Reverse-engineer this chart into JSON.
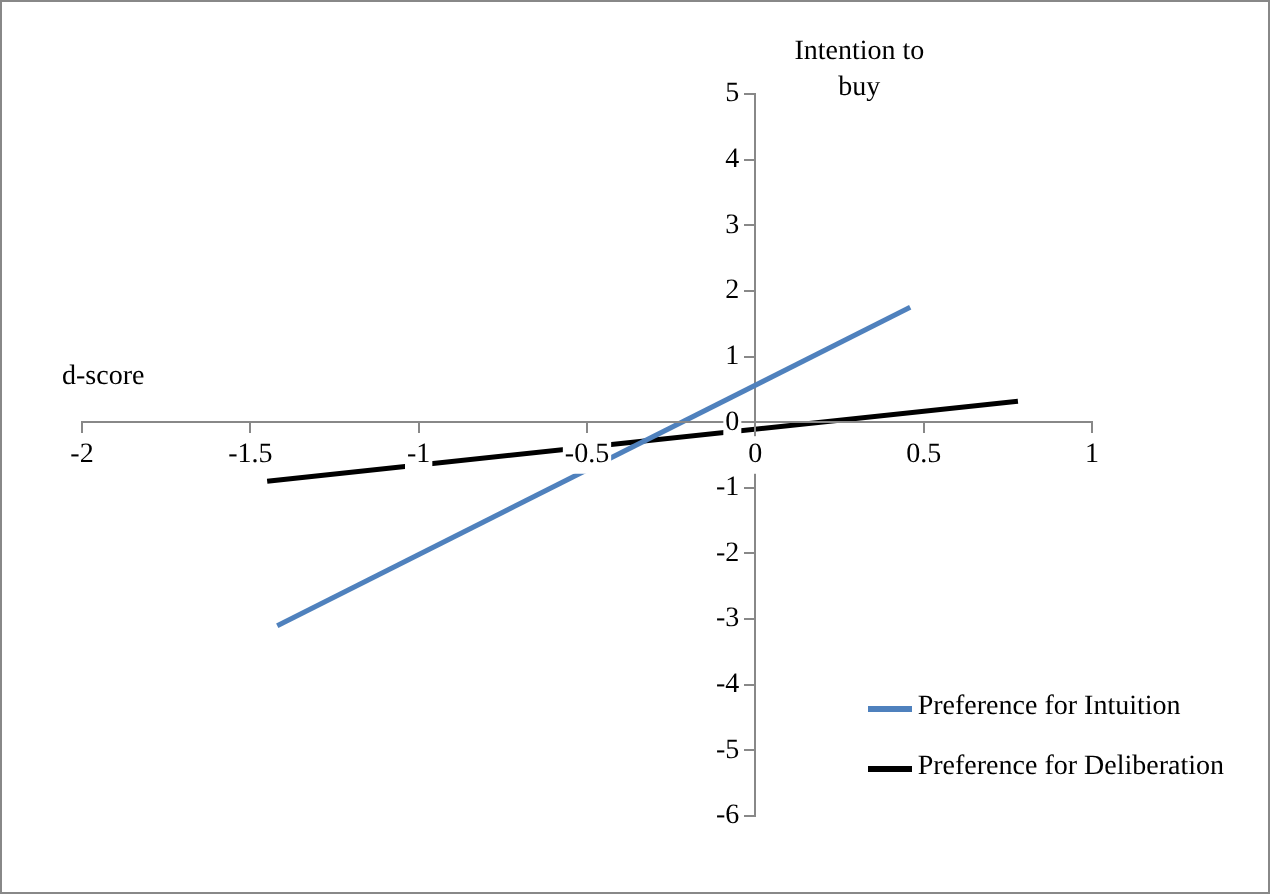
{
  "chart_data": {
    "type": "line",
    "xlabel": "d-score",
    "ylabel": "Intention to buy",
    "series": [
      {
        "name": "Preference for Intuition",
        "color": "#4f81bd",
        "x": [
          -1.42,
          0.46
        ],
        "values": [
          -3.1,
          1.75
        ]
      },
      {
        "name": "Preference for Deliberation",
        "color": "#000000",
        "x": [
          -1.45,
          0.78
        ],
        "values": [
          -0.9,
          0.32
        ]
      }
    ],
    "xlim": [
      -2,
      1
    ],
    "xticks": [
      -2,
      -1.5,
      -1,
      -0.5,
      0,
      0.5,
      1
    ],
    "ylim": [
      -6,
      5
    ],
    "yticks": [
      -6,
      -5,
      -4,
      -3,
      -2,
      -1,
      0,
      1,
      2,
      3,
      4,
      5
    ],
    "grid": false,
    "legend": "bottom right",
    "marker": "none",
    "line_style": "solid"
  }
}
